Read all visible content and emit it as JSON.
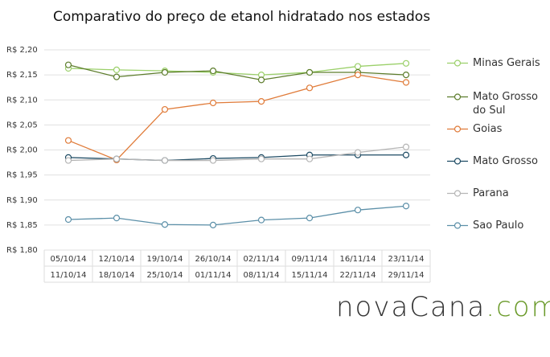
{
  "chart_data": {
    "type": "line",
    "title": "Comparativo do preço de etanol hidratado nos estados",
    "categories": [
      [
        "05/10/14",
        "11/10/14"
      ],
      [
        "12/10/14",
        "18/10/14"
      ],
      [
        "19/10/14",
        "25/10/14"
      ],
      [
        "26/10/14",
        "01/11/14"
      ],
      [
        "02/11/14",
        "08/11/14"
      ],
      [
        "09/11/14",
        "15/11/14"
      ],
      [
        "16/11/14",
        "22/11/14"
      ],
      [
        "23/11/14",
        "29/11/14"
      ]
    ],
    "series": [
      {
        "name": "Minas Gerais",
        "color": "#9bd06a",
        "values": [
          2.163,
          2.16,
          2.158,
          2.155,
          2.15,
          2.155,
          2.167,
          2.173
        ]
      },
      {
        "name": "Mato Grosso do Sul",
        "color": "#5d7d2c",
        "values": [
          2.17,
          2.146,
          2.155,
          2.158,
          2.14,
          2.155,
          2.155,
          2.15
        ]
      },
      {
        "name": "Goias",
        "color": "#e07b39",
        "values": [
          2.019,
          1.98,
          2.081,
          2.094,
          2.097,
          2.124,
          2.15,
          2.135
        ]
      },
      {
        "name": "Mato Grosso",
        "color": "#1c4a63",
        "values": [
          1.985,
          1.982,
          1.979,
          1.983,
          1.985,
          1.99,
          1.99,
          1.99
        ]
      },
      {
        "name": "Parana",
        "color": "#b5b5b5",
        "values": [
          1.979,
          1.982,
          1.979,
          1.979,
          1.982,
          1.982,
          1.995,
          2.006
        ]
      },
      {
        "name": "Sao Paulo",
        "color": "#5b8fa8",
        "values": [
          1.861,
          1.864,
          1.851,
          1.85,
          1.86,
          1.864,
          1.88,
          1.888
        ]
      }
    ],
    "ylim": [
      1.8,
      2.2
    ],
    "yticks": [
      {
        "value": 1.8,
        "label": "R$ 1,80"
      },
      {
        "value": 1.85,
        "label": "R$ 1,85"
      },
      {
        "value": 1.9,
        "label": "R$ 1,90"
      },
      {
        "value": 1.95,
        "label": "R$ 1,95"
      },
      {
        "value": 2.0,
        "label": "R$ 2,00"
      },
      {
        "value": 2.05,
        "label": "R$ 2,05"
      },
      {
        "value": 2.1,
        "label": "R$ 2,10"
      },
      {
        "value": 2.15,
        "label": "R$ 2,15"
      },
      {
        "value": 2.2,
        "label": "R$ 2,20"
      }
    ],
    "grid": true,
    "logo": [
      "novaCana",
      ".com"
    ]
  }
}
